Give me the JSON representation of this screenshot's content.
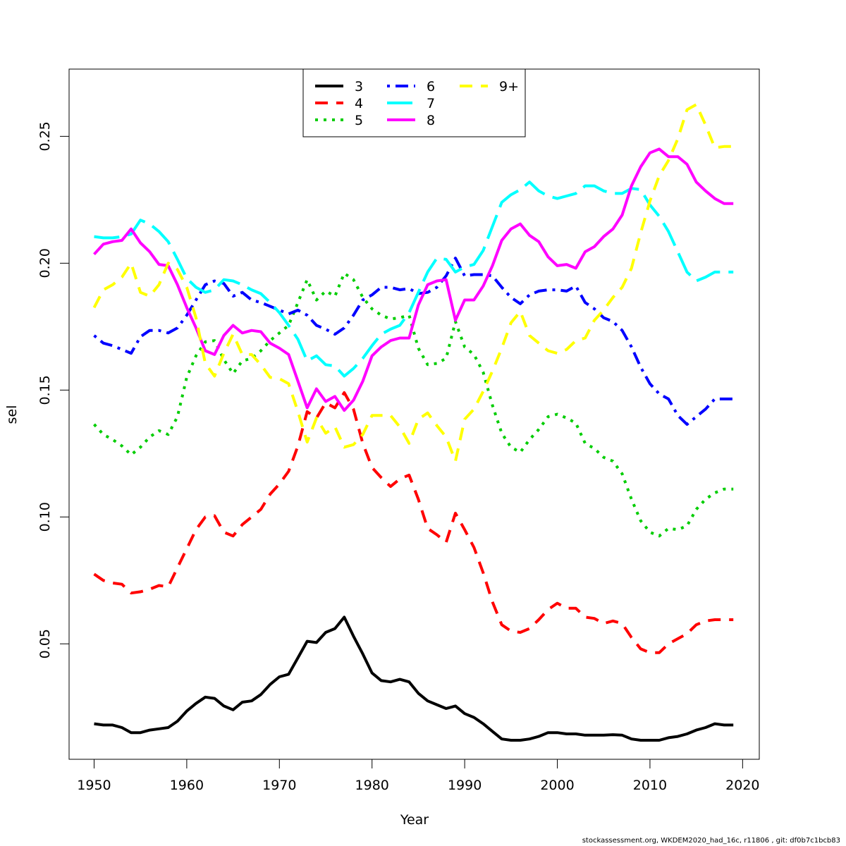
{
  "chart_data": {
    "type": "line",
    "xlabel": "Year",
    "ylabel": "sel",
    "xlim": [
      1947.3,
      2021.8
    ],
    "ylim": [
      0.0045,
      0.2765
    ],
    "xticks": [
      1950,
      1960,
      1970,
      1980,
      1990,
      2000,
      2010,
      2020
    ],
    "yticks": [
      0.05,
      0.1,
      0.15,
      0.2,
      0.25
    ],
    "ytick_labels": [
      "0.05",
      "0.10",
      "0.15",
      "0.20",
      "0.25"
    ],
    "legend_position": "top-center",
    "legend_columns": 3,
    "x": [
      1950,
      1951,
      1952,
      1953,
      1954,
      1955,
      1956,
      1957,
      1958,
      1959,
      1960,
      1961,
      1962,
      1963,
      1964,
      1965,
      1966,
      1967,
      1968,
      1969,
      1970,
      1971,
      1972,
      1973,
      1974,
      1975,
      1976,
      1977,
      1978,
      1979,
      1980,
      1981,
      1982,
      1983,
      1984,
      1985,
      1986,
      1987,
      1988,
      1989,
      1990,
      1991,
      1992,
      1993,
      1994,
      1995,
      1996,
      1997,
      1998,
      1999,
      2000,
      2001,
      2002,
      2003,
      2004,
      2005,
      2006,
      2007,
      2008,
      2009,
      2010,
      2011,
      2012,
      2013,
      2014,
      2015,
      2016,
      2017,
      2018,
      2019
    ],
    "series": [
      {
        "name": "3",
        "color": "#000000",
        "dash": "solid",
        "values": [
          0.0185,
          0.018,
          0.018,
          0.017,
          0.015,
          0.015,
          0.016,
          0.0165,
          0.017,
          0.0195,
          0.0235,
          0.0265,
          0.029,
          0.0285,
          0.0255,
          0.024,
          0.027,
          0.0275,
          0.03,
          0.034,
          0.037,
          0.038,
          0.0445,
          0.051,
          0.0505,
          0.0545,
          0.056,
          0.0605,
          0.053,
          0.046,
          0.0385,
          0.0355,
          0.035,
          0.036,
          0.035,
          0.0305,
          0.0275,
          0.026,
          0.0245,
          0.0255,
          0.0225,
          0.021,
          0.0185,
          0.0155,
          0.0125,
          0.012,
          0.012,
          0.0125,
          0.0135,
          0.015,
          0.015,
          0.0145,
          0.0145,
          0.014,
          0.014,
          0.014,
          0.0142,
          0.014,
          0.0125,
          0.012,
          0.012,
          0.012,
          0.013,
          0.0135,
          0.0145,
          0.016,
          0.017,
          0.0185,
          0.018,
          0.018
        ]
      },
      {
        "name": "4",
        "color": "#ff0000",
        "dash": "dashed",
        "values": [
          0.0775,
          0.075,
          0.074,
          0.0735,
          0.07,
          0.0705,
          0.0715,
          0.073,
          0.0725,
          0.08,
          0.0875,
          0.095,
          0.1,
          0.1005,
          0.094,
          0.0925,
          0.097,
          0.1,
          0.103,
          0.109,
          0.113,
          0.118,
          0.128,
          0.1415,
          0.139,
          0.145,
          0.143,
          0.149,
          0.1425,
          0.129,
          0.1195,
          0.1155,
          0.112,
          0.115,
          0.1165,
          0.107,
          0.0955,
          0.093,
          0.09,
          0.1015,
          0.095,
          0.088,
          0.078,
          0.0665,
          0.0575,
          0.055,
          0.0545,
          0.056,
          0.0595,
          0.0635,
          0.066,
          0.064,
          0.064,
          0.0605,
          0.06,
          0.058,
          0.059,
          0.058,
          0.0525,
          0.048,
          0.0465,
          0.0465,
          0.05,
          0.052,
          0.054,
          0.0575,
          0.059,
          0.0595,
          0.0595,
          0.0595
        ]
      },
      {
        "name": "5",
        "color": "#00cd00",
        "dash": "dotted",
        "values": [
          0.1365,
          0.1325,
          0.1305,
          0.128,
          0.1245,
          0.1275,
          0.1315,
          0.134,
          0.1325,
          0.1395,
          0.155,
          0.1635,
          0.169,
          0.1695,
          0.162,
          0.1565,
          0.1615,
          0.1625,
          0.1655,
          0.1695,
          0.1725,
          0.1755,
          0.1845,
          0.1935,
          0.1855,
          0.189,
          0.187,
          0.196,
          0.1935,
          0.1865,
          0.182,
          0.1795,
          0.178,
          0.1785,
          0.1795,
          0.1665,
          0.16,
          0.1605,
          0.1625,
          0.177,
          0.167,
          0.164,
          0.157,
          0.144,
          0.133,
          0.1275,
          0.1255,
          0.1305,
          0.1345,
          0.1395,
          0.1405,
          0.139,
          0.137,
          0.129,
          0.127,
          0.1235,
          0.122,
          0.117,
          0.107,
          0.0985,
          0.094,
          0.0925,
          0.0955,
          0.095,
          0.0965,
          0.103,
          0.107,
          0.1095,
          0.111,
          0.111
        ]
      },
      {
        "name": "6",
        "color": "#0000ff",
        "dash": "dot-dash",
        "values": [
          0.1715,
          0.1685,
          0.1675,
          0.166,
          0.1645,
          0.171,
          0.1735,
          0.1735,
          0.1725,
          0.1745,
          0.1795,
          0.1855,
          0.1915,
          0.193,
          0.192,
          0.187,
          0.1885,
          0.1855,
          0.1845,
          0.183,
          0.1815,
          0.18,
          0.1815,
          0.1795,
          0.1755,
          0.174,
          0.172,
          0.1745,
          0.1795,
          0.1855,
          0.1875,
          0.1905,
          0.1905,
          0.1895,
          0.19,
          0.188,
          0.1885,
          0.1905,
          0.195,
          0.202,
          0.195,
          0.1955,
          0.1955,
          0.195,
          0.1905,
          0.1865,
          0.184,
          0.1875,
          0.189,
          0.1895,
          0.1895,
          0.189,
          0.191,
          0.1845,
          0.182,
          0.1785,
          0.177,
          0.1735,
          0.167,
          0.159,
          0.1525,
          0.1485,
          0.1465,
          0.14,
          0.1365,
          0.1395,
          0.1425,
          0.1465,
          0.1465,
          0.1465
        ]
      },
      {
        "name": "7",
        "color": "#00ffff",
        "dash": "long-dash",
        "values": [
          0.2105,
          0.21,
          0.21,
          0.2105,
          0.2115,
          0.217,
          0.2155,
          0.2125,
          0.2085,
          0.2015,
          0.194,
          0.1905,
          0.1885,
          0.1895,
          0.1935,
          0.193,
          0.1915,
          0.1895,
          0.188,
          0.1845,
          0.1805,
          0.1755,
          0.17,
          0.1615,
          0.1635,
          0.16,
          0.1595,
          0.1555,
          0.1585,
          0.1625,
          0.1675,
          0.172,
          0.174,
          0.1755,
          0.1805,
          0.1885,
          0.1965,
          0.202,
          0.2015,
          0.1965,
          0.1985,
          0.1995,
          0.205,
          0.2145,
          0.224,
          0.227,
          0.229,
          0.232,
          0.2285,
          0.2265,
          0.2255,
          0.2265,
          0.2275,
          0.2305,
          0.2305,
          0.2285,
          0.2275,
          0.2275,
          0.2295,
          0.229,
          0.223,
          0.2185,
          0.2125,
          0.2045,
          0.1965,
          0.193,
          0.1945,
          0.1965,
          0.1965,
          0.1965
        ]
      },
      {
        "name": "8",
        "color": "#ff00ff",
        "dash": "solid",
        "values": [
          0.2035,
          0.2075,
          0.2085,
          0.209,
          0.2135,
          0.208,
          0.2045,
          0.1995,
          0.199,
          0.1915,
          0.1825,
          0.1745,
          0.1655,
          0.164,
          0.1715,
          0.1755,
          0.1725,
          0.1735,
          0.173,
          0.1685,
          0.1665,
          0.164,
          0.1535,
          0.143,
          0.1505,
          0.1455,
          0.1475,
          0.142,
          0.146,
          0.1535,
          0.1635,
          0.167,
          0.1695,
          0.1705,
          0.1705,
          0.1835,
          0.1915,
          0.193,
          0.1935,
          0.1775,
          0.1855,
          0.1855,
          0.191,
          0.199,
          0.209,
          0.2135,
          0.2155,
          0.211,
          0.2085,
          0.2025,
          0.199,
          0.1995,
          0.198,
          0.2045,
          0.2065,
          0.2105,
          0.2135,
          0.219,
          0.2305,
          0.238,
          0.2435,
          0.245,
          0.242,
          0.242,
          0.239,
          0.232,
          0.2285,
          0.2255,
          0.2235,
          0.2235
        ]
      },
      {
        "name": "9+",
        "color": "#ffff00",
        "dash": "dashed",
        "values": [
          0.1825,
          0.1895,
          0.1915,
          0.1945,
          0.2,
          0.1885,
          0.187,
          0.1915,
          0.2,
          0.1975,
          0.1905,
          0.1785,
          0.1605,
          0.1555,
          0.1645,
          0.172,
          0.164,
          0.164,
          0.16,
          0.155,
          0.1545,
          0.1525,
          0.1415,
          0.1295,
          0.139,
          0.133,
          0.1355,
          0.1275,
          0.1285,
          0.1325,
          0.14,
          0.14,
          0.14,
          0.1355,
          0.129,
          0.1385,
          0.141,
          0.136,
          0.1315,
          0.122,
          0.1385,
          0.1425,
          0.1495,
          0.1575,
          0.1665,
          0.1765,
          0.181,
          0.1715,
          0.1685,
          0.1655,
          0.1645,
          0.166,
          0.1695,
          0.1705,
          0.1775,
          0.1815,
          0.1865,
          0.1905,
          0.198,
          0.212,
          0.2245,
          0.2345,
          0.2405,
          0.249,
          0.2605,
          0.2625,
          0.2545,
          0.2455,
          0.246,
          0.246
        ]
      }
    ]
  },
  "footer": "stockassessment.org, WKDEM2020_had_16c, r11806 , git: df0b7c1bcb83"
}
